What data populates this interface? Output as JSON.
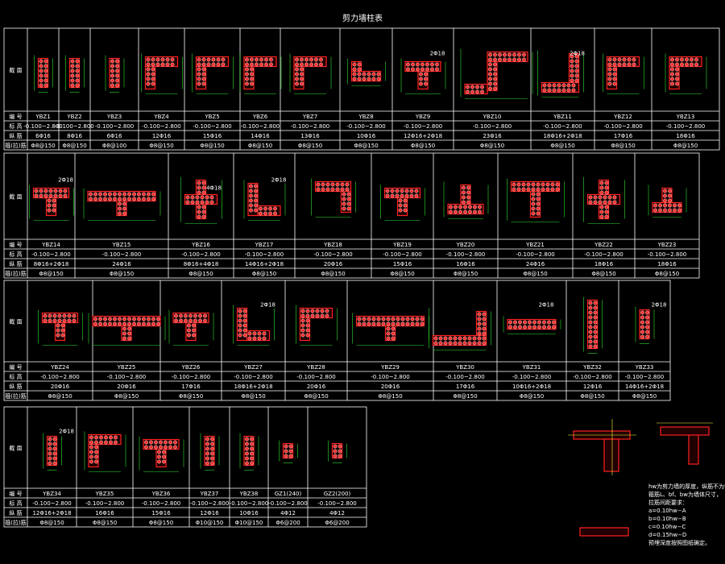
{
  "title": "剪力墙柱表",
  "row_labels": {
    "section": "截 面",
    "number": "编 号",
    "elevation": "标 高",
    "longitudinal": "纵 筋",
    "stirrup": "箍(拉)筋"
  },
  "bands": [
    {
      "columns": [
        {
          "id": "YBZ1",
          "elev": "-0.100~2.800",
          "rebar": "6Φ16",
          "stirrup": "Φ8@150"
        },
        {
          "id": "YBZ2",
          "elev": "-0.100~2.800",
          "rebar": "8Φ16",
          "stirrup": "Φ8@150"
        },
        {
          "id": "YBZ3",
          "elev": "-0.100~2.800",
          "rebar": "6Φ16",
          "stirrup": "Φ8@100"
        },
        {
          "id": "YBZ4",
          "elev": "-0.100~2.800",
          "rebar": "12Φ16",
          "stirrup": "Φ8@150"
        },
        {
          "id": "YBZ5",
          "elev": "-0.100~2.800",
          "rebar": "15Φ16",
          "stirrup": "Φ8@150"
        },
        {
          "id": "YBZ6",
          "elev": "-0.100~2.800",
          "rebar": "14Φ16",
          "stirrup": "Φ8@150"
        },
        {
          "id": "YBZ7",
          "elev": "-0.100~2.800",
          "rebar": "13Φ16",
          "stirrup": "Φ8@150"
        },
        {
          "id": "YBZ8",
          "elev": "-0.100~2.800",
          "rebar": "10Φ16",
          "stirrup": "Φ8@150"
        },
        {
          "id": "YBZ9",
          "elev": "-0.100~2.800",
          "rebar": "12Φ16+2Φ18",
          "stirrup": "Φ8@150"
        },
        {
          "id": "YBZ10",
          "elev": "-0.100~2.800",
          "rebar": "23Φ16",
          "stirrup": "Φ8@150"
        },
        {
          "id": "YBZ11",
          "elev": "-0.100~2.800",
          "rebar": "18Φ16+2Φ18",
          "stirrup": "Φ8@150"
        },
        {
          "id": "YBZ12",
          "elev": "-0.100~2.800",
          "rebar": "17Φ16",
          "stirrup": "Φ8@150"
        },
        {
          "id": "YBZ13",
          "elev": "-0.100~2.800",
          "rebar": "18Φ16",
          "stirrup": "Φ8@150"
        }
      ]
    },
    {
      "columns": [
        {
          "id": "YBZ14",
          "elev": "-0.100~2.800",
          "rebar": "8Φ16+2Φ18",
          "stirrup": "Φ8@150"
        },
        {
          "id": "YBZ15",
          "elev": "-0.100~2.800",
          "rebar": "24Φ16",
          "stirrup": "Φ8@150"
        },
        {
          "id": "YBZ16",
          "elev": "-0.100~2.800",
          "rebar": "8Φ16+4Φ18",
          "stirrup": "Φ8@150"
        },
        {
          "id": "YBZ17",
          "elev": "-0.100~2.800",
          "rebar": "14Φ16+2Φ18",
          "stirrup": "Φ8@150"
        },
        {
          "id": "YBZ18",
          "elev": "-0.100~2.800",
          "rebar": "20Φ16",
          "stirrup": "Φ8@150"
        },
        {
          "id": "YBZ19",
          "elev": "-0.100~2.800",
          "rebar": "15Φ16",
          "stirrup": "Φ8@150"
        },
        {
          "id": "YBZ20",
          "elev": "-0.100~2.800",
          "rebar": "16Φ16",
          "stirrup": "Φ8@150"
        },
        {
          "id": "YBZ21",
          "elev": "-0.100~2.800",
          "rebar": "24Φ16",
          "stirrup": "Φ8@150"
        },
        {
          "id": "YBZ22",
          "elev": "-0.100~2.800",
          "rebar": "18Φ16",
          "stirrup": "Φ8@150"
        },
        {
          "id": "YBZ23",
          "elev": "-0.100~2.800",
          "rebar": "18Φ16",
          "stirrup": "Φ8@150"
        }
      ]
    },
    {
      "columns": [
        {
          "id": "YBZ24",
          "elev": "-0.100~2.800",
          "rebar": "20Φ16",
          "stirrup": "Φ8@150"
        },
        {
          "id": "YBZ25",
          "elev": "-0.100~2.800",
          "rebar": "20Φ16",
          "stirrup": "Φ8@150"
        },
        {
          "id": "YBZ26",
          "elev": "-0.100~2.800",
          "rebar": "17Φ16",
          "stirrup": "Φ8@150"
        },
        {
          "id": "YBZ27",
          "elev": "-0.100~2.800",
          "rebar": "18Φ16+2Φ18",
          "stirrup": "Φ8@150"
        },
        {
          "id": "YBZ28",
          "elev": "-0.100~2.800",
          "rebar": "20Φ16",
          "stirrup": "Φ8@150"
        },
        {
          "id": "YBZ29",
          "elev": "-0.100~2.800",
          "rebar": "20Φ16",
          "stirrup": "Φ8@150"
        },
        {
          "id": "YBZ30",
          "elev": "-0.100~2.800",
          "rebar": "17Φ16",
          "stirrup": "Φ8@150"
        },
        {
          "id": "YBZ31",
          "elev": "-0.100~2.800",
          "rebar": "10Φ16+2Φ18",
          "stirrup": "Φ8@150"
        },
        {
          "id": "YBZ32",
          "elev": "-0.100~2.800",
          "rebar": "12Φ16",
          "stirrup": "Φ8@150"
        },
        {
          "id": "YBZ33",
          "elev": "-0.100~2.800",
          "rebar": "14Φ16+2Φ18",
          "stirrup": "Φ8@150"
        }
      ]
    },
    {
      "columns": [
        {
          "id": "YBZ34",
          "elev": "-0.100~2.800",
          "rebar": "12Φ16+2Φ18",
          "stirrup": "Φ8@150"
        },
        {
          "id": "YBZ35",
          "elev": "-0.100~2.800",
          "rebar": "16Φ16",
          "stirrup": "Φ8@150"
        },
        {
          "id": "YBZ36",
          "elev": "-0.100~2.800",
          "rebar": "15Φ16",
          "stirrup": "Φ8@150"
        },
        {
          "id": "YBZ37",
          "elev": "-0.100~2.800",
          "rebar": "12Φ16",
          "stirrup": "Φ10@150"
        },
        {
          "id": "YBZ38",
          "elev": "-0.100~2.800",
          "rebar": "10Φ16",
          "stirrup": "Φ10@150"
        },
        {
          "id": "GZ1(240)",
          "elev": "-0.100~2.800",
          "rebar": "4Φ12",
          "stirrup": "Φ6@200"
        },
        {
          "id": "GZ2(200)",
          "elev": "-0.100~2.800",
          "rebar": "4Φ12",
          "stirrup": "Φ6@200"
        }
      ]
    }
  ],
  "notes": {
    "tag_2x18": "2Φ18",
    "tag_4x18": "4Φ18",
    "legend_lines": [
      "hw为剪力墙的厚度，纵筋不为零配筋时按",
      "箍筋L、bf、bw为墙体尺寸，",
      "拉筋间距要求：",
      "a=0.10hw−A",
      "b=0.10hw−B",
      "c=0.10hw−C",
      "d=0.15hw−D",
      "预埋深度按照图纸确定。"
    ]
  }
}
